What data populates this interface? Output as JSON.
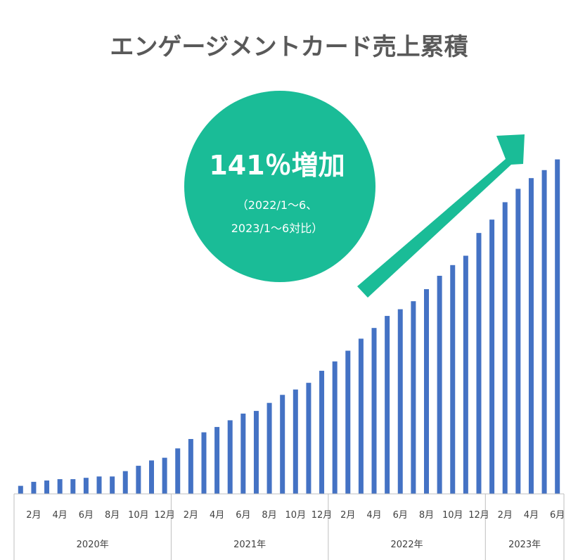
{
  "chart_data": {
    "type": "bar",
    "title": "エンゲージメントカード売上累積",
    "xlabel": "",
    "ylabel": "",
    "grid": false,
    "legend": "none",
    "bar_color": "#4472C4",
    "categories": [
      "2020-01",
      "2020-02",
      "2020-03",
      "2020-04",
      "2020-05",
      "2020-06",
      "2020-07",
      "2020-08",
      "2020-09",
      "2020-10",
      "2020-11",
      "2020-12",
      "2021-01",
      "2021-02",
      "2021-03",
      "2021-04",
      "2021-05",
      "2021-06",
      "2021-07",
      "2021-08",
      "2021-09",
      "2021-10",
      "2021-11",
      "2021-12",
      "2022-01",
      "2022-02",
      "2022-03",
      "2022-04",
      "2022-05",
      "2022-06",
      "2022-07",
      "2022-08",
      "2022-09",
      "2022-10",
      "2022-11",
      "2022-12",
      "2023-01",
      "2023-02",
      "2023-03",
      "2023-04",
      "2023-05",
      "2023-06"
    ],
    "values": [
      2.4,
      3.6,
      4.0,
      4.4,
      4.4,
      4.8,
      5.2,
      5.2,
      6.8,
      8.4,
      10.0,
      10.8,
      13.6,
      16.4,
      18.4,
      20.0,
      22.0,
      24.0,
      24.8,
      27.2,
      29.6,
      31.2,
      33.2,
      36.8,
      39.6,
      42.8,
      46.4,
      49.6,
      53.2,
      55.2,
      57.6,
      61.2,
      65.2,
      68.4,
      71.2,
      78.0,
      82.0,
      87.2,
      91.2,
      94.4,
      96.8,
      100.0
    ],
    "ylim": [
      0,
      114
    ],
    "tick_labels": [
      {
        "index": 1,
        "label": "2月"
      },
      {
        "index": 3,
        "label": "4月"
      },
      {
        "index": 5,
        "label": "6月"
      },
      {
        "index": 7,
        "label": "8月"
      },
      {
        "index": 9,
        "label": "10月"
      },
      {
        "index": 11,
        "label": "12月"
      },
      {
        "index": 13,
        "label": "2月"
      },
      {
        "index": 15,
        "label": "4月"
      },
      {
        "index": 17,
        "label": "6月"
      },
      {
        "index": 19,
        "label": "8月"
      },
      {
        "index": 21,
        "label": "10月"
      },
      {
        "index": 23,
        "label": "12月"
      },
      {
        "index": 25,
        "label": "2月"
      },
      {
        "index": 27,
        "label": "4月"
      },
      {
        "index": 29,
        "label": "6月"
      },
      {
        "index": 31,
        "label": "8月"
      },
      {
        "index": 33,
        "label": "10月"
      },
      {
        "index": 35,
        "label": "12月"
      },
      {
        "index": 37,
        "label": "2月"
      },
      {
        "index": 39,
        "label": "4月"
      },
      {
        "index": 41,
        "label": "6月"
      }
    ],
    "year_groups": [
      {
        "label": "2020年",
        "start": 0,
        "end": 11
      },
      {
        "label": "2021年",
        "start": 12,
        "end": 23
      },
      {
        "label": "2022年",
        "start": 24,
        "end": 35
      },
      {
        "label": "2023年",
        "start": 36,
        "end": 41
      }
    ]
  },
  "badge": {
    "main": "141％増加",
    "sub_line1": "（2022/1〜6、",
    "sub_line2": "2023/1〜6対比）",
    "color": "#1ABC97"
  },
  "arrow": {
    "color": "#1ABC97",
    "icon": "trend-up-arrow-icon"
  }
}
